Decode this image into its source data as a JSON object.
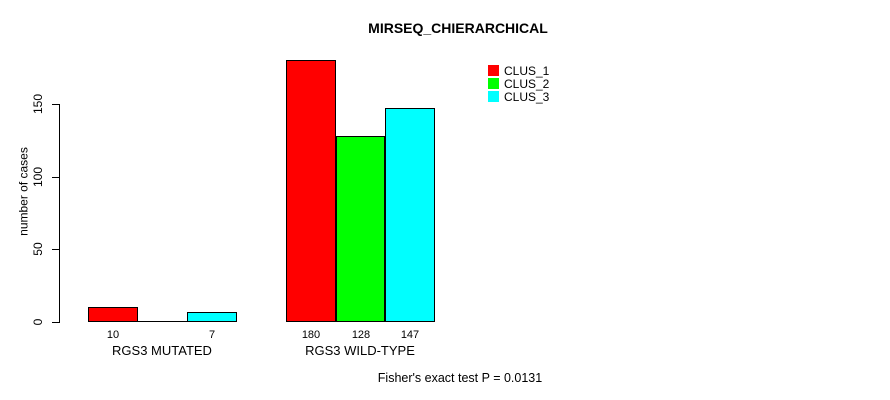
{
  "chart_data": {
    "type": "bar",
    "title": "MIRSEQ_CHIERARCHICAL",
    "xlabel": "",
    "ylabel": "number of cases",
    "categories": [
      "RGS3 MUTATED",
      "RGS3 WILD-TYPE"
    ],
    "series": [
      {
        "name": "CLUS_1",
        "color": "#ff0000",
        "values": [
          10,
          180
        ]
      },
      {
        "name": "CLUS_2",
        "color": "#00ff00",
        "values": [
          0,
          128
        ]
      },
      {
        "name": "CLUS_3",
        "color": "#00ffff",
        "values": [
          7,
          147
        ]
      }
    ],
    "bar_value_labels": [
      {
        "category": "RGS3 MUTATED",
        "labels": [
          "10",
          "",
          "7"
        ]
      },
      {
        "category": "RGS3 WILD-TYPE",
        "labels": [
          "180",
          "128",
          "147"
        ]
      }
    ],
    "yticks": [
      0,
      50,
      100,
      150
    ],
    "ylim": [
      0,
      150
    ],
    "grid": false,
    "legend_position": "top-right",
    "legend": [
      "CLUS_1",
      "CLUS_2",
      "CLUS_3"
    ],
    "annotation": "Fisher's exact test P = 0.0131",
    "colors": {
      "axis": "#000000",
      "text": "#000000",
      "bar_border": "#000000",
      "background": "#ffffff"
    }
  }
}
